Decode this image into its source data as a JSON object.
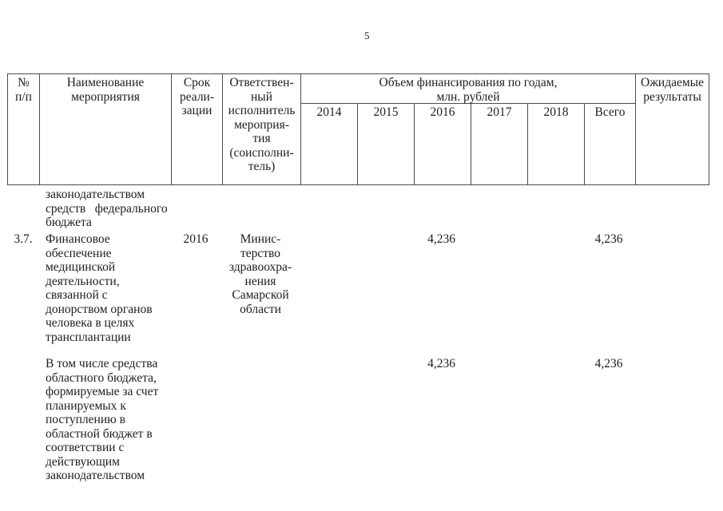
{
  "page": {
    "number": "5"
  },
  "table": {
    "header": {
      "num_lines": [
        "№",
        "п/п"
      ],
      "name_lines": [
        "Наименование",
        "мероприятия"
      ],
      "term_lines": [
        "Срок",
        "реали-",
        "зации"
      ],
      "exec_lines": [
        "Ответствен-",
        "ный",
        "исполнитель",
        "мероприя-",
        "тия",
        "(соисполни-",
        "тель)"
      ],
      "financing_lines": [
        "Объем финансирования по годам,",
        "млн. рублей"
      ],
      "years": [
        "2014",
        "2015",
        "2016",
        "2017",
        "2018",
        "Всего"
      ],
      "results_lines": [
        "Ожидаемые",
        "результаты"
      ]
    },
    "rows": [
      {
        "name_lines": [
          "законодательством",
          "средств   федерального",
          "бюджета"
        ]
      },
      {
        "num": "3.7.",
        "name_lines": [
          "Финансовое",
          "обеспечение",
          "медицинской",
          "деятельности,",
          "связанной с",
          "донорством органов",
          "человека в целях",
          "трансплантации"
        ],
        "term": "2016",
        "executor_lines": [
          "Минис-",
          "терство",
          "здравоохра-",
          "нения",
          "Самарской",
          "области"
        ],
        "value_2016": "4,236",
        "value_total": "4,236"
      },
      {
        "name_lines": [
          "В том числе средства",
          "областного бюджета,",
          "формируемые за счет",
          "планируемых к",
          "поступлению в",
          "областной бюджет в",
          "соответствии с",
          "действующим",
          "законодательством"
        ],
        "value_2016": "4,236",
        "value_total": "4,236"
      }
    ]
  }
}
